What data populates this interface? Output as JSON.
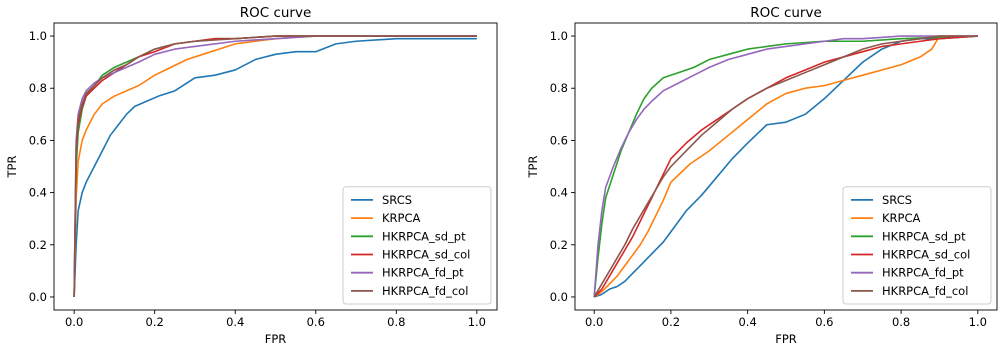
{
  "chart_data": [
    {
      "type": "line",
      "title": "ROC curve",
      "xlabel": "FPR",
      "ylabel": "TPR",
      "xlim": [
        -0.05,
        1.05
      ],
      "ylim": [
        -0.05,
        1.05
      ],
      "xticks": [
        0.0,
        0.2,
        0.4,
        0.6,
        0.8,
        1.0
      ],
      "yticks": [
        0.0,
        0.2,
        0.4,
        0.6,
        0.8,
        1.0
      ],
      "tick_labels": [
        "0.0",
        "0.2",
        "0.4",
        "0.6",
        "0.8",
        "1.0"
      ],
      "grid": false,
      "legend_position": "lower-right",
      "series": [
        {
          "name": "SRCS",
          "color": "#1f77b4",
          "x": [
            0,
            0.005,
            0.01,
            0.02,
            0.03,
            0.05,
            0.07,
            0.09,
            0.11,
            0.13,
            0.15,
            0.18,
            0.21,
            0.25,
            0.3,
            0.35,
            0.4,
            0.45,
            0.5,
            0.55,
            0.6,
            0.65,
            0.7,
            0.8,
            0.9,
            1.0
          ],
          "y": [
            0,
            0.2,
            0.33,
            0.4,
            0.44,
            0.5,
            0.56,
            0.62,
            0.66,
            0.7,
            0.73,
            0.75,
            0.77,
            0.79,
            0.84,
            0.85,
            0.87,
            0.91,
            0.93,
            0.94,
            0.94,
            0.97,
            0.98,
            0.99,
            0.99,
            0.99
          ]
        },
        {
          "name": "KRPCA",
          "color": "#ff7f0e",
          "x": [
            0,
            0.005,
            0.01,
            0.02,
            0.03,
            0.05,
            0.07,
            0.1,
            0.13,
            0.16,
            0.2,
            0.24,
            0.28,
            0.32,
            0.36,
            0.4,
            0.45,
            0.5,
            0.6,
            0.7,
            1.0
          ],
          "y": [
            0,
            0.38,
            0.52,
            0.6,
            0.64,
            0.7,
            0.74,
            0.77,
            0.79,
            0.81,
            0.85,
            0.88,
            0.91,
            0.93,
            0.95,
            0.97,
            0.98,
            0.99,
            1.0,
            1.0,
            1.0
          ]
        },
        {
          "name": "HKRPCA_sd_pt",
          "color": "#2ca02c",
          "x": [
            0,
            0.005,
            0.01,
            0.02,
            0.03,
            0.05,
            0.07,
            0.1,
            0.13,
            0.16,
            0.2,
            0.25,
            0.3,
            0.35,
            0.4,
            0.5,
            0.6,
            1.0
          ],
          "y": [
            0,
            0.5,
            0.63,
            0.72,
            0.77,
            0.81,
            0.85,
            0.88,
            0.9,
            0.92,
            0.95,
            0.97,
            0.98,
            0.99,
            0.99,
            1.0,
            1.0,
            1.0
          ]
        },
        {
          "name": "HKRPCA_sd_col",
          "color": "#d62728",
          "x": [
            0,
            0.005,
            0.01,
            0.02,
            0.03,
            0.05,
            0.07,
            0.1,
            0.13,
            0.16,
            0.2,
            0.25,
            0.3,
            0.35,
            0.4,
            0.5,
            1.0
          ],
          "y": [
            0,
            0.55,
            0.66,
            0.73,
            0.77,
            0.8,
            0.83,
            0.86,
            0.89,
            0.92,
            0.94,
            0.97,
            0.98,
            0.99,
            0.99,
            1.0,
            1.0
          ]
        },
        {
          "name": "HKRPCA_fd_pt",
          "color": "#9467bd",
          "x": [
            0,
            0.005,
            0.01,
            0.02,
            0.03,
            0.05,
            0.07,
            0.1,
            0.13,
            0.16,
            0.2,
            0.25,
            0.3,
            0.4,
            0.5,
            0.6,
            1.0
          ],
          "y": [
            0,
            0.6,
            0.7,
            0.76,
            0.79,
            0.82,
            0.84,
            0.86,
            0.88,
            0.9,
            0.93,
            0.95,
            0.96,
            0.98,
            0.99,
            1.0,
            1.0
          ]
        },
        {
          "name": "HKRPCA_fd_col",
          "color": "#8c564b",
          "x": [
            0,
            0.005,
            0.01,
            0.02,
            0.03,
            0.05,
            0.07,
            0.1,
            0.13,
            0.16,
            0.2,
            0.25,
            0.3,
            0.4,
            0.5,
            1.0
          ],
          "y": [
            0,
            0.57,
            0.68,
            0.74,
            0.78,
            0.81,
            0.84,
            0.87,
            0.89,
            0.92,
            0.95,
            0.97,
            0.98,
            0.99,
            1.0,
            1.0
          ]
        }
      ]
    },
    {
      "type": "line",
      "title": "ROC curve",
      "xlabel": "FPR",
      "ylabel": "TPR",
      "xlim": [
        -0.05,
        1.05
      ],
      "ylim": [
        -0.05,
        1.05
      ],
      "xticks": [
        0.0,
        0.2,
        0.4,
        0.6,
        0.8,
        1.0
      ],
      "yticks": [
        0.0,
        0.2,
        0.4,
        0.6,
        0.8,
        1.0
      ],
      "tick_labels": [
        "0.0",
        "0.2",
        "0.4",
        "0.6",
        "0.8",
        "1.0"
      ],
      "grid": false,
      "legend_position": "lower-right",
      "series": [
        {
          "name": "SRCS",
          "color": "#1f77b4",
          "x": [
            0,
            0.02,
            0.04,
            0.06,
            0.08,
            0.1,
            0.12,
            0.14,
            0.16,
            0.18,
            0.2,
            0.24,
            0.28,
            0.32,
            0.36,
            0.4,
            0.45,
            0.5,
            0.55,
            0.6,
            0.65,
            0.7,
            0.75,
            0.8,
            0.85,
            0.9,
            1.0
          ],
          "y": [
            0,
            0.01,
            0.03,
            0.04,
            0.06,
            0.09,
            0.12,
            0.15,
            0.18,
            0.21,
            0.25,
            0.33,
            0.39,
            0.46,
            0.53,
            0.59,
            0.66,
            0.67,
            0.7,
            0.76,
            0.83,
            0.9,
            0.95,
            0.98,
            0.99,
            0.99,
            1.0
          ]
        },
        {
          "name": "KRPCA",
          "color": "#ff7f0e",
          "x": [
            0,
            0.02,
            0.04,
            0.06,
            0.08,
            0.1,
            0.12,
            0.14,
            0.16,
            0.18,
            0.2,
            0.25,
            0.3,
            0.35,
            0.4,
            0.45,
            0.5,
            0.55,
            0.6,
            0.65,
            0.7,
            0.75,
            0.8,
            0.85,
            0.88,
            0.9,
            1.0
          ],
          "y": [
            0,
            0.02,
            0.05,
            0.08,
            0.12,
            0.16,
            0.2,
            0.25,
            0.31,
            0.37,
            0.44,
            0.51,
            0.56,
            0.62,
            0.68,
            0.74,
            0.78,
            0.8,
            0.81,
            0.83,
            0.85,
            0.87,
            0.89,
            0.92,
            0.95,
            1.0,
            1.0
          ]
        },
        {
          "name": "HKRPCA_sd_pt",
          "color": "#2ca02c",
          "x": [
            0,
            0.01,
            0.02,
            0.03,
            0.05,
            0.07,
            0.09,
            0.11,
            0.13,
            0.15,
            0.18,
            0.22,
            0.26,
            0.3,
            0.35,
            0.4,
            0.45,
            0.5,
            0.6,
            0.7,
            0.8,
            1.0
          ],
          "y": [
            0,
            0.15,
            0.28,
            0.38,
            0.47,
            0.56,
            0.63,
            0.7,
            0.76,
            0.8,
            0.84,
            0.86,
            0.88,
            0.91,
            0.93,
            0.95,
            0.96,
            0.97,
            0.98,
            0.98,
            0.99,
            1.0
          ]
        },
        {
          "name": "HKRPCA_sd_col",
          "color": "#d62728",
          "x": [
            0,
            0.02,
            0.04,
            0.06,
            0.08,
            0.1,
            0.12,
            0.14,
            0.16,
            0.18,
            0.2,
            0.24,
            0.28,
            0.32,
            0.36,
            0.4,
            0.45,
            0.5,
            0.55,
            0.6,
            0.65,
            0.7,
            0.75,
            0.8,
            0.85,
            0.9,
            1.0
          ],
          "y": [
            0,
            0.03,
            0.08,
            0.13,
            0.18,
            0.23,
            0.29,
            0.35,
            0.41,
            0.47,
            0.53,
            0.59,
            0.64,
            0.68,
            0.72,
            0.76,
            0.8,
            0.84,
            0.87,
            0.9,
            0.92,
            0.94,
            0.96,
            0.97,
            0.98,
            0.99,
            1.0
          ]
        },
        {
          "name": "HKRPCA_fd_pt",
          "color": "#9467bd",
          "x": [
            0,
            0.01,
            0.02,
            0.03,
            0.05,
            0.07,
            0.09,
            0.11,
            0.13,
            0.15,
            0.18,
            0.22,
            0.26,
            0.3,
            0.35,
            0.4,
            0.45,
            0.5,
            0.55,
            0.6,
            0.65,
            0.7,
            0.8,
            0.9,
            1.0
          ],
          "y": [
            0,
            0.2,
            0.33,
            0.42,
            0.5,
            0.57,
            0.63,
            0.68,
            0.72,
            0.75,
            0.79,
            0.82,
            0.85,
            0.88,
            0.91,
            0.93,
            0.95,
            0.96,
            0.97,
            0.98,
            0.99,
            0.99,
            1.0,
            1.0,
            1.0
          ]
        },
        {
          "name": "HKRPCA_fd_col",
          "color": "#8c564b",
          "x": [
            0,
            0.02,
            0.04,
            0.06,
            0.08,
            0.1,
            0.12,
            0.14,
            0.16,
            0.18,
            0.2,
            0.24,
            0.28,
            0.32,
            0.36,
            0.4,
            0.45,
            0.5,
            0.55,
            0.6,
            0.65,
            0.7,
            0.75,
            0.8,
            0.85,
            0.9,
            1.0
          ],
          "y": [
            0,
            0.05,
            0.1,
            0.15,
            0.2,
            0.26,
            0.31,
            0.36,
            0.41,
            0.46,
            0.5,
            0.56,
            0.62,
            0.67,
            0.72,
            0.76,
            0.8,
            0.83,
            0.86,
            0.89,
            0.92,
            0.95,
            0.97,
            0.98,
            0.99,
            1.0,
            1.0
          ]
        }
      ]
    }
  ]
}
